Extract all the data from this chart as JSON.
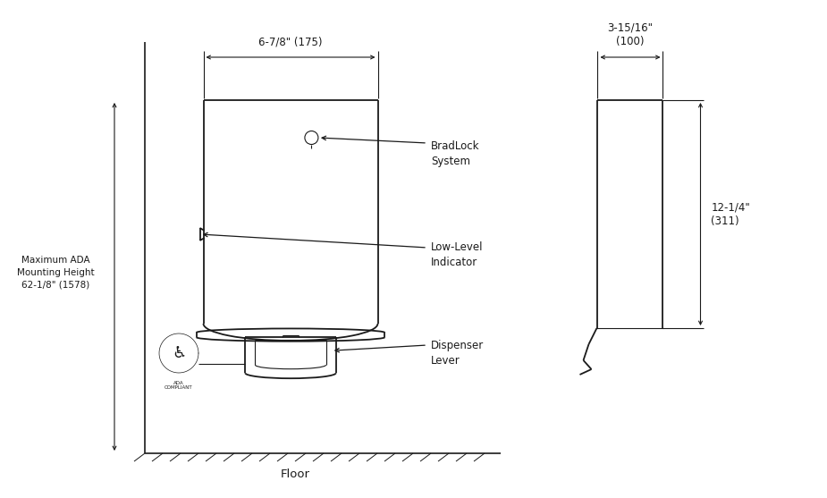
{
  "bg_color": "#ffffff",
  "line_color": "#1a1a1a",
  "text_color": "#1a1a1a",
  "floor_label": "Floor",
  "label_bradlock": "BradLock\nSystem",
  "label_lowlevel": "Low-Level\nIndicator",
  "label_dispenser": "Dispenser\nLever",
  "label_ada": "Maximum ADA\nMounting Height\n62-1/8\" (1578)",
  "dim_width_front": "6-7/8\" (175)",
  "dim_width_side": "3-15/16\"\n(100)",
  "dim_height_side": "12-1/4\"\n(311)"
}
